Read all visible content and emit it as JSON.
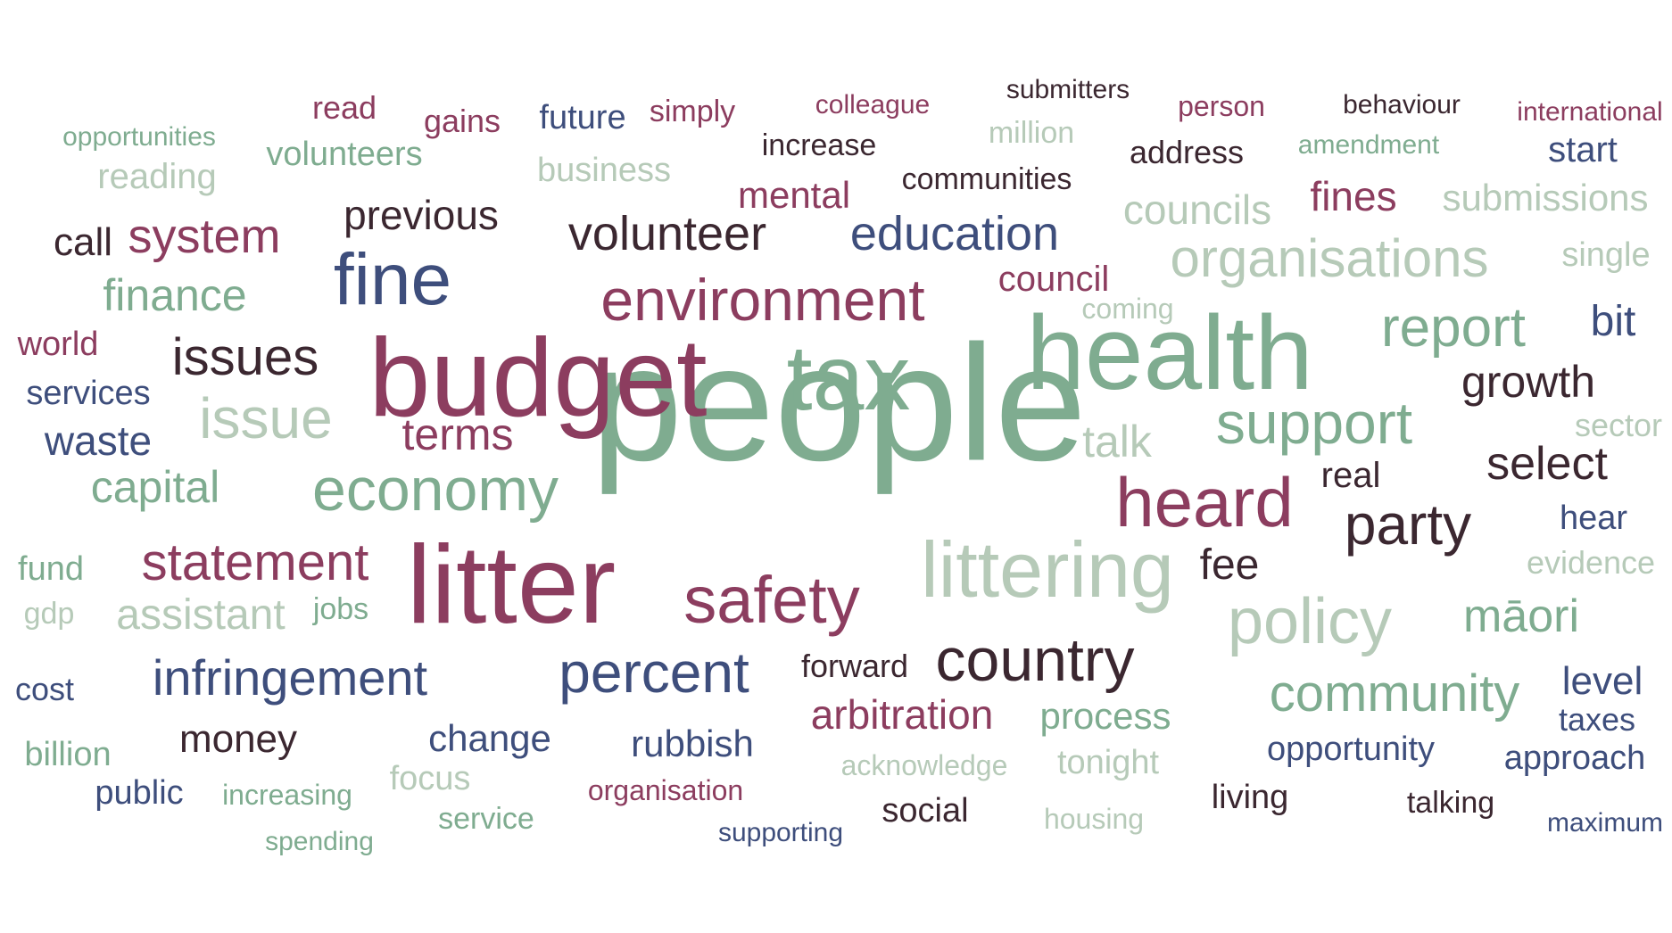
{
  "colors": {
    "green": "#7fac90",
    "light_green": "#b6cab8",
    "maroon": "#8c3d5f",
    "navy": "#3e4e7c",
    "dark": "#3b2730"
  },
  "words": [
    {
      "text": "people",
      "color": "green"
    },
    {
      "text": "budget",
      "color": "maroon"
    },
    {
      "text": "health",
      "color": "green"
    },
    {
      "text": "litter",
      "color": "maroon"
    },
    {
      "text": "tax",
      "color": "green"
    },
    {
      "text": "littering",
      "color": "light_green"
    },
    {
      "text": "heard",
      "color": "maroon"
    },
    {
      "text": "fine",
      "color": "navy"
    },
    {
      "text": "safety",
      "color": "maroon"
    },
    {
      "text": "environment",
      "color": "maroon"
    },
    {
      "text": "economy",
      "color": "green"
    },
    {
      "text": "policy",
      "color": "light_green"
    },
    {
      "text": "support",
      "color": "green"
    },
    {
      "text": "country",
      "color": "dark"
    },
    {
      "text": "organisations",
      "color": "light_green"
    },
    {
      "text": "issue",
      "color": "light_green"
    },
    {
      "text": "party",
      "color": "dark"
    },
    {
      "text": "percent",
      "color": "navy"
    },
    {
      "text": "report",
      "color": "green"
    },
    {
      "text": "community",
      "color": "green"
    },
    {
      "text": "statement",
      "color": "maroon"
    },
    {
      "text": "infringement",
      "color": "navy"
    },
    {
      "text": "volunteer",
      "color": "dark"
    },
    {
      "text": "education",
      "color": "navy"
    },
    {
      "text": "issues",
      "color": "dark"
    },
    {
      "text": "capital",
      "color": "green"
    },
    {
      "text": "system",
      "color": "maroon"
    },
    {
      "text": "growth",
      "color": "dark"
    },
    {
      "text": "māori",
      "color": "green"
    },
    {
      "text": "select",
      "color": "dark"
    },
    {
      "text": "finance",
      "color": "green"
    },
    {
      "text": "terms",
      "color": "maroon"
    },
    {
      "text": "arbitration",
      "color": "maroon"
    },
    {
      "text": "assistant",
      "color": "light_green"
    },
    {
      "text": "councils",
      "color": "light_green"
    },
    {
      "text": "talk",
      "color": "light_green"
    },
    {
      "text": "previous",
      "color": "dark"
    },
    {
      "text": "waste",
      "color": "navy"
    },
    {
      "text": "fines",
      "color": "maroon"
    },
    {
      "text": "submissions",
      "color": "light_green"
    },
    {
      "text": "level",
      "color": "navy"
    },
    {
      "text": "bit",
      "color": "navy"
    },
    {
      "text": "money",
      "color": "dark"
    },
    {
      "text": "change",
      "color": "navy"
    },
    {
      "text": "rubbish",
      "color": "navy"
    },
    {
      "text": "process",
      "color": "green"
    },
    {
      "text": "fee",
      "color": "dark"
    },
    {
      "text": "mental",
      "color": "maroon"
    },
    {
      "text": "call",
      "color": "dark"
    },
    {
      "text": "council",
      "color": "maroon"
    },
    {
      "text": "single",
      "color": "light_green"
    },
    {
      "text": "reading",
      "color": "light_green"
    },
    {
      "text": "volunteers",
      "color": "green"
    },
    {
      "text": "business",
      "color": "light_green"
    },
    {
      "text": "start",
      "color": "navy"
    },
    {
      "text": "opportunity",
      "color": "navy"
    },
    {
      "text": "approach",
      "color": "navy"
    },
    {
      "text": "tonight",
      "color": "light_green"
    },
    {
      "text": "world",
      "color": "maroon"
    },
    {
      "text": "services",
      "color": "navy"
    },
    {
      "text": "fund",
      "color": "green"
    },
    {
      "text": "focus",
      "color": "light_green"
    },
    {
      "text": "sector",
      "color": "light_green"
    },
    {
      "text": "evidence",
      "color": "light_green"
    },
    {
      "text": "hear",
      "color": "navy"
    },
    {
      "text": "real",
      "color": "dark"
    },
    {
      "text": "taxes",
      "color": "navy"
    },
    {
      "text": "living",
      "color": "dark"
    },
    {
      "text": "social",
      "color": "dark"
    },
    {
      "text": "forward",
      "color": "dark"
    },
    {
      "text": "address",
      "color": "dark"
    },
    {
      "text": "increase",
      "color": "dark"
    },
    {
      "text": "communities",
      "color": "dark"
    },
    {
      "text": "billion",
      "color": "green"
    },
    {
      "text": "future",
      "color": "navy"
    },
    {
      "text": "public",
      "color": "navy"
    },
    {
      "text": "read",
      "color": "maroon"
    },
    {
      "text": "gains",
      "color": "maroon"
    },
    {
      "text": "simply",
      "color": "maroon"
    },
    {
      "text": "cost",
      "color": "navy"
    },
    {
      "text": "talking",
      "color": "dark"
    },
    {
      "text": "jobs",
      "color": "green"
    },
    {
      "text": "gdp",
      "color": "light_green"
    },
    {
      "text": "million",
      "color": "light_green"
    },
    {
      "text": "person",
      "color": "maroon"
    },
    {
      "text": "service",
      "color": "green"
    },
    {
      "text": "behaviour",
      "color": "dark"
    },
    {
      "text": "submitters",
      "color": "dark"
    },
    {
      "text": "colleague",
      "color": "maroon"
    },
    {
      "text": "amendment",
      "color": "green"
    },
    {
      "text": "international",
      "color": "maroon"
    },
    {
      "text": "opportunities",
      "color": "green"
    },
    {
      "text": "coming",
      "color": "light_green"
    },
    {
      "text": "acknowledge",
      "color": "light_green"
    },
    {
      "text": "organisation",
      "color": "maroon"
    },
    {
      "text": "increasing",
      "color": "green"
    },
    {
      "text": "housing",
      "color": "light_green"
    },
    {
      "text": "maximum",
      "color": "navy"
    },
    {
      "text": "supporting",
      "color": "navy"
    },
    {
      "text": "spending",
      "color": "green"
    }
  ]
}
